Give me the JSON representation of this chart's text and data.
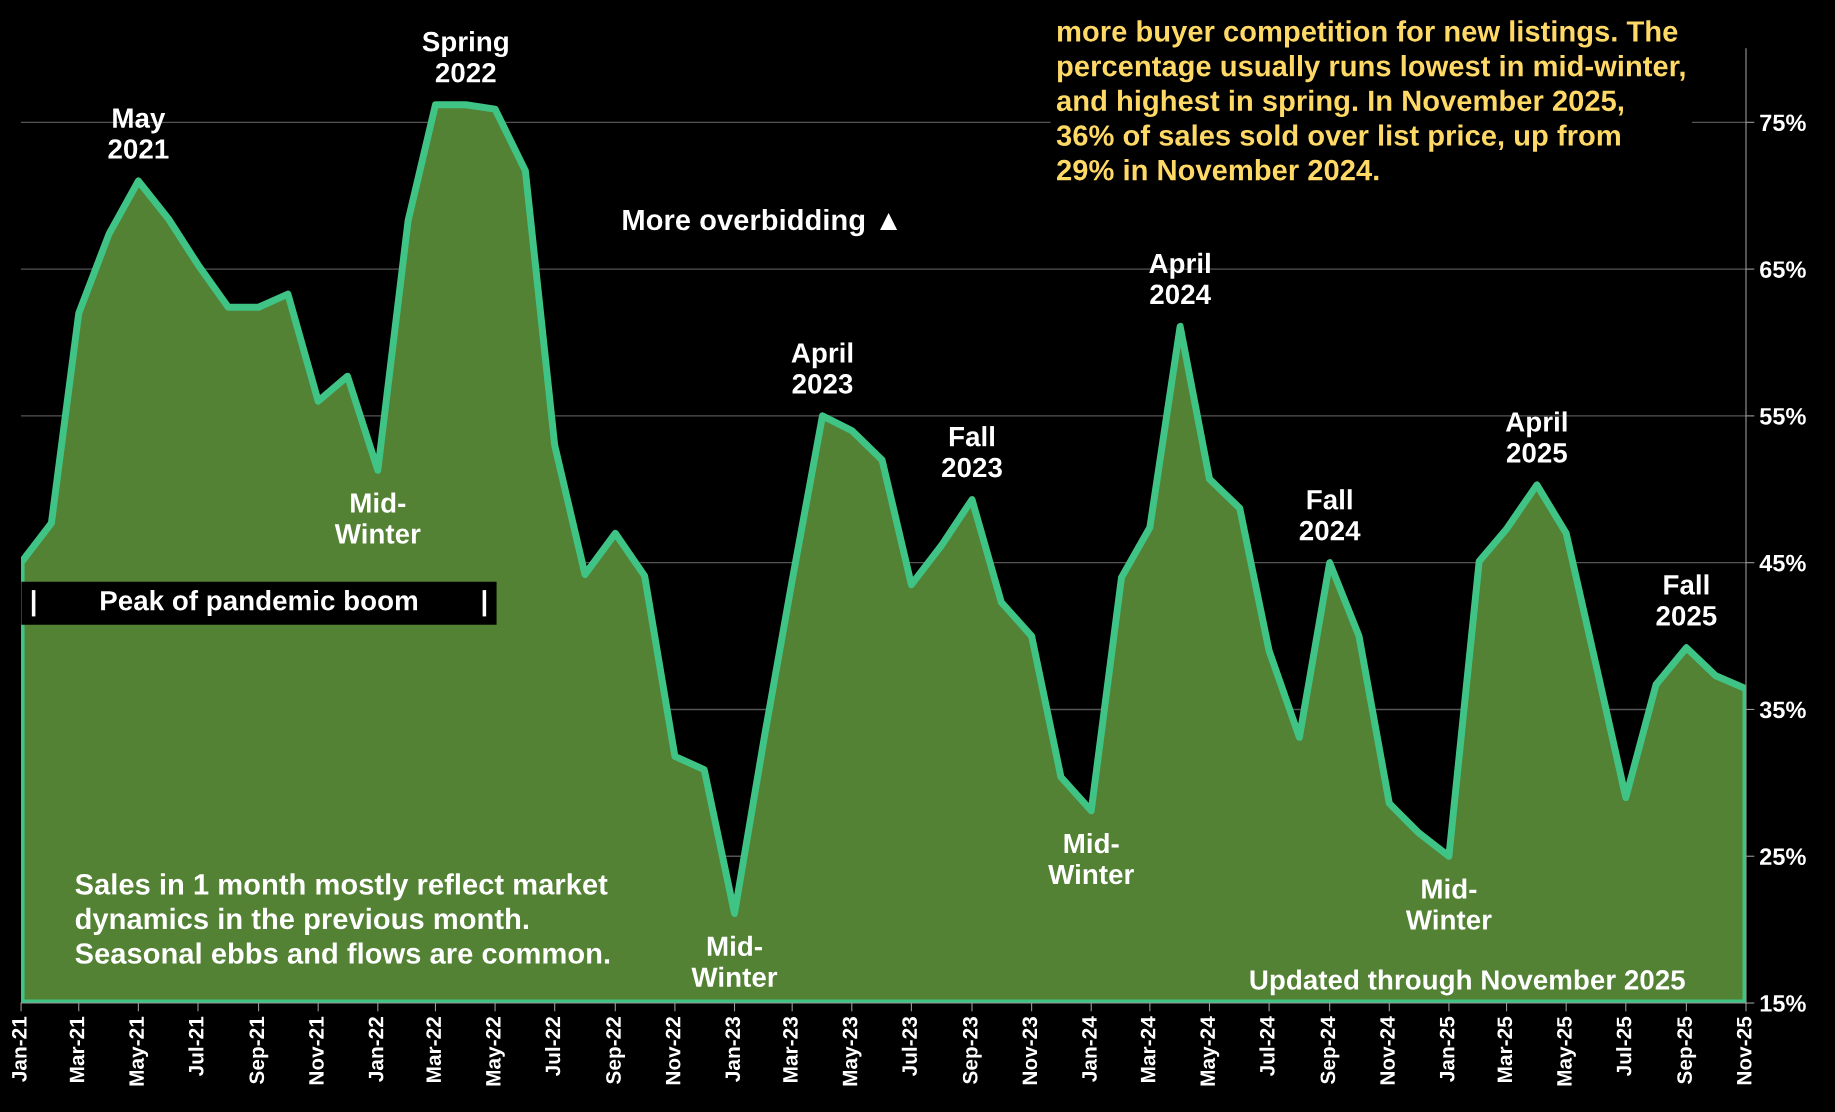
{
  "chart_data": {
    "type": "area",
    "x": [
      "2021-01",
      "2021-02",
      "2021-03",
      "2021-04",
      "2021-05",
      "2021-06",
      "2021-07",
      "2021-08",
      "2021-09",
      "2021-10",
      "2021-11",
      "2021-12",
      "2022-01",
      "2022-02",
      "2022-03",
      "2022-04",
      "2022-05",
      "2022-06",
      "2022-07",
      "2022-08",
      "2022-09",
      "2022-10",
      "2022-11",
      "2022-12",
      "2023-01",
      "2023-02",
      "2023-03",
      "2023-04",
      "2023-05",
      "2023-06",
      "2023-07",
      "2023-08",
      "2023-09",
      "2023-10",
      "2023-11",
      "2023-12",
      "2024-01",
      "2024-02",
      "2024-03",
      "2024-04",
      "2024-05",
      "2024-06",
      "2024-07",
      "2024-08",
      "2024-09",
      "2024-10",
      "2024-11",
      "2024-12",
      "2025-01",
      "2025-02",
      "2025-03",
      "2025-04",
      "2025-05",
      "2025-06",
      "2025-07",
      "2025-08",
      "2025-09",
      "2025-10",
      "2025-11"
    ],
    "series": [
      {
        "color": "#548235",
        "values": [
          45.0,
          47.7,
          62.0,
          67.4,
          71.0,
          68.4,
          65.3,
          62.4,
          62.4,
          63.3,
          56.0,
          57.7,
          51.3,
          68.3,
          76.2,
          76.2,
          75.9,
          71.7,
          53.0,
          44.2,
          47.0,
          44.1,
          31.8,
          30.9,
          21.1,
          33.3,
          43.8,
          55.0,
          54.0,
          52.0,
          43.5,
          46.2,
          49.3,
          42.3,
          40.0,
          30.4,
          28.1,
          44.0,
          47.4,
          61.1,
          50.7,
          48.7,
          39.0,
          33.1,
          45.0,
          40.0,
          28.6,
          26.6,
          25.0,
          45.1,
          47.3,
          50.3,
          47.0,
          37.9,
          29.0,
          36.7,
          39.2,
          37.3,
          36.4
        ]
      }
    ],
    "xlim": [
      "2021-01",
      "2025-11"
    ],
    "xticks": [
      {
        "value": "2021-01",
        "label": "Jan-21"
      },
      {
        "value": "2021-03",
        "label": "Mar-21"
      },
      {
        "value": "2021-05",
        "label": "May-21"
      },
      {
        "value": "2021-07",
        "label": "Jul-21"
      },
      {
        "value": "2021-09",
        "label": "Sep-21"
      },
      {
        "value": "2021-11",
        "label": "Nov-21"
      },
      {
        "value": "2022-01",
        "label": "Jan-22"
      },
      {
        "value": "2022-03",
        "label": "Mar-22"
      },
      {
        "value": "2022-05",
        "label": "May-22"
      },
      {
        "value": "2022-07",
        "label": "Jul-22"
      },
      {
        "value": "2022-09",
        "label": "Sep-22"
      },
      {
        "value": "2022-11",
        "label": "Nov-22"
      },
      {
        "value": "2023-01",
        "label": "Jan-23"
      },
      {
        "value": "2023-03",
        "label": "Mar-23"
      },
      {
        "value": "2023-05",
        "label": "May-23"
      },
      {
        "value": "2023-07",
        "label": "Jul-23"
      },
      {
        "value": "2023-09",
        "label": "Sep-23"
      },
      {
        "value": "2023-11",
        "label": "Nov-23"
      },
      {
        "value": "2024-01",
        "label": "Jan-24"
      },
      {
        "value": "2024-03",
        "label": "Mar-24"
      },
      {
        "value": "2024-05",
        "label": "May-24"
      },
      {
        "value": "2024-07",
        "label": "Jul-24"
      },
      {
        "value": "2024-09",
        "label": "Sep-24"
      },
      {
        "value": "2024-11",
        "label": "Nov-24"
      },
      {
        "value": "2025-01",
        "label": "Jan-25"
      },
      {
        "value": "2025-03",
        "label": "Mar-25"
      },
      {
        "value": "2025-05",
        "label": "May-25"
      },
      {
        "value": "2025-07",
        "label": "Jul-25"
      },
      {
        "value": "2025-09",
        "label": "Sep-25"
      },
      {
        "value": "2025-11",
        "label": "Nov-25"
      }
    ],
    "ylim": [
      15,
      80
    ],
    "yticks": [
      {
        "value": 15,
        "label": "15%"
      },
      {
        "value": 25,
        "label": "25%"
      },
      {
        "value": 35,
        "label": "35%"
      },
      {
        "value": 45,
        "label": "45%"
      },
      {
        "value": 55,
        "label": "55%"
      },
      {
        "value": 65,
        "label": "65%"
      },
      {
        "value": 75,
        "label": "75%"
      }
    ],
    "grid": "y",
    "annotations": [
      {
        "text": "May\n2021",
        "x": "2021-05",
        "y": 71.0
      },
      {
        "text": "Spring\n2022",
        "x": "2022-04",
        "y": 76.2
      },
      {
        "text": "Mid-\nWinter",
        "x": "2022-01",
        "y": 51.3
      },
      {
        "text": "Mid-\nWinter",
        "x": "2023-01",
        "y": 21.1
      },
      {
        "text": "April\n2023",
        "x": "2023-04",
        "y": 55.0
      },
      {
        "text": "Fall\n2023",
        "x": "2023-09",
        "y": 49.3
      },
      {
        "text": "Mid-\nWinter",
        "x": "2024-01",
        "y": 28.1
      },
      {
        "text": "April\n2024",
        "x": "2024-04",
        "y": 61.1
      },
      {
        "text": "Fall\n2024",
        "x": "2024-09",
        "y": 45.0
      },
      {
        "text": "Mid-\nWinter",
        "x": "2025-01",
        "y": 25.0
      },
      {
        "text": "April\n2025",
        "x": "2025-04",
        "y": 50.3
      },
      {
        "text": "Fall\n2025",
        "x": "2025-09",
        "y": 39.2
      },
      "More overbidding ▲",
      "more buyer competition for new listings. The percentage usually runs lowest in mid-winter, and highest in spring. In November 2025, 36% of sales sold over list price, up from 29% in November 2024.",
      "|        Peak of pandemic boom        |",
      "Sales in 1 month mostly reflect market dynamics in the previous month. Seasonal ebbs and flows are common.",
      "Updated through November 2025"
    ]
  }
}
